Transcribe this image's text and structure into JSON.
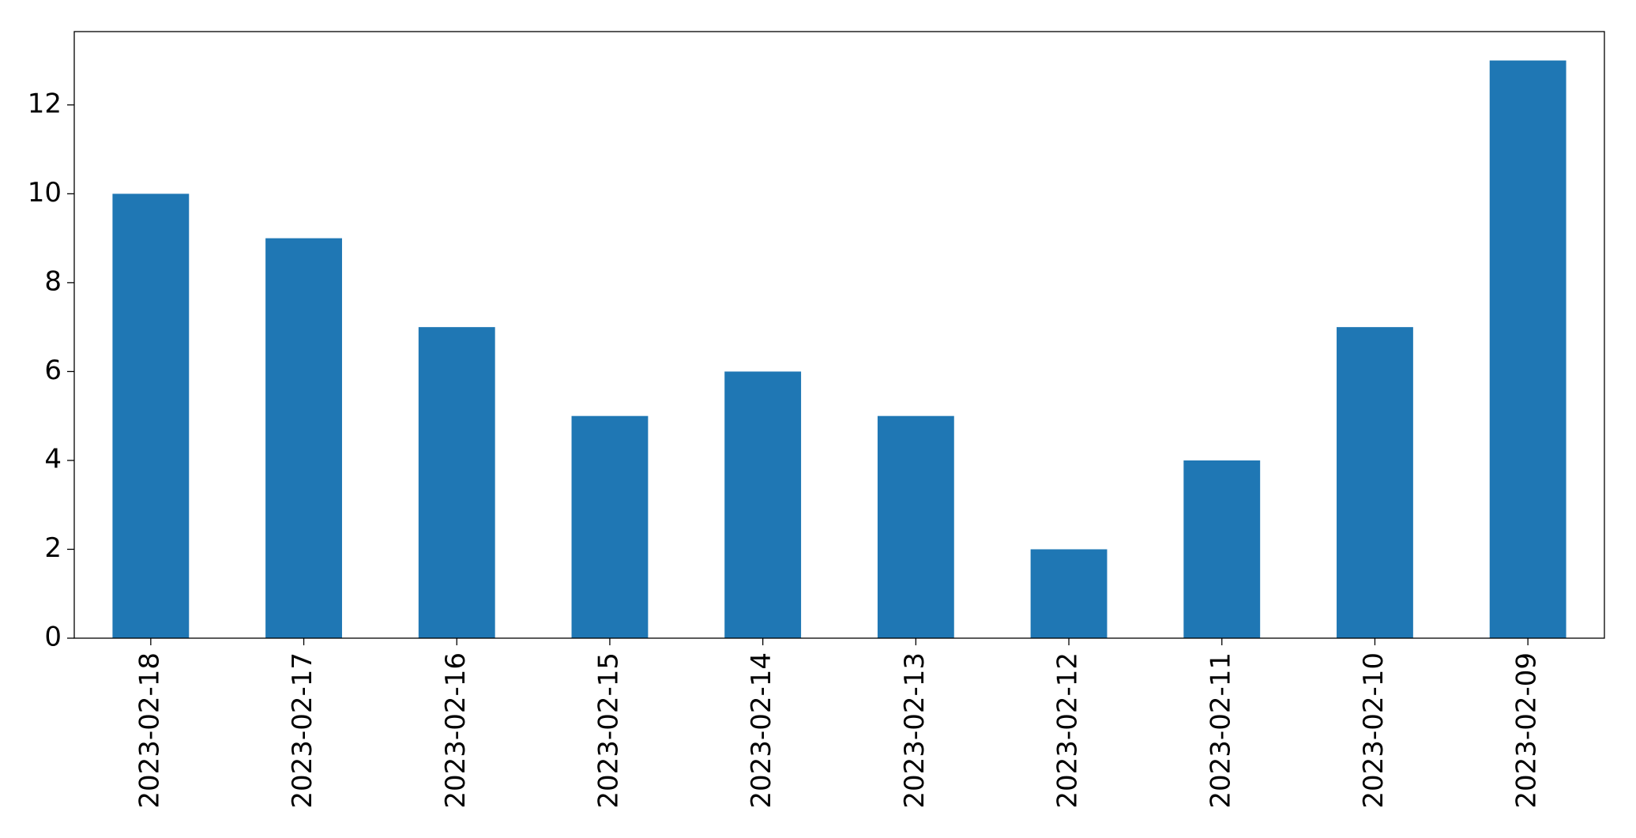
{
  "chart_data": {
    "type": "bar",
    "categories": [
      "2023-02-18",
      "2023-02-17",
      "2023-02-16",
      "2023-02-15",
      "2023-02-14",
      "2023-02-13",
      "2023-02-12",
      "2023-02-11",
      "2023-02-10",
      "2023-02-09"
    ],
    "values": [
      10,
      9,
      7,
      5,
      6,
      5,
      2,
      4,
      7,
      13
    ],
    "color": "#1f77b4",
    "ylim": [
      0,
      13.65
    ],
    "yticks": [
      0,
      2,
      4,
      6,
      8,
      10,
      12
    ],
    "grid": false
  }
}
